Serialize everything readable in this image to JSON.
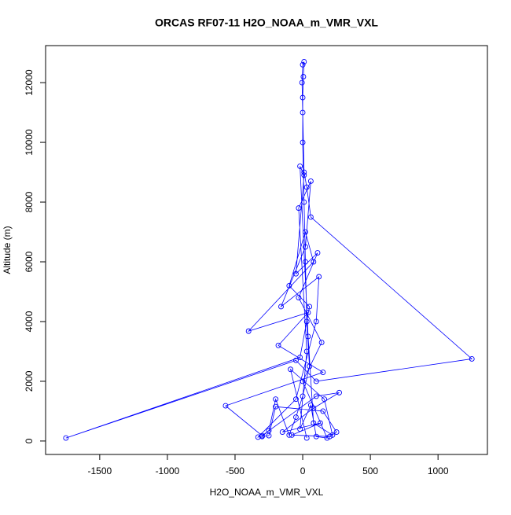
{
  "chart_data": {
    "type": "line",
    "title": "ORCAS RF07-11 H2O_NOAA_m_VMR_VXL",
    "x_label": "H2O_NOAA_m_VMR_VXL",
    "y_label": "Altitude (m)",
    "color": "#0000ff",
    "markers": true,
    "xlim": [
      -1900,
      1365
    ],
    "ylim": [
      -450,
      13240
    ],
    "xticks": [
      -1500,
      -1000,
      -500,
      0,
      500,
      1000
    ],
    "yticks": [
      0,
      2000,
      4000,
      6000,
      8000,
      10000,
      12000
    ],
    "x": [
      -300,
      -250,
      -200,
      -100,
      -50,
      0,
      50,
      30,
      20,
      10,
      0,
      0,
      5,
      10,
      0,
      -5,
      0,
      10,
      30,
      60,
      1250,
      100,
      -50,
      -1750,
      -20,
      50,
      -100,
      20,
      80,
      -400,
      40,
      -180,
      150,
      -570,
      -300,
      100,
      270,
      80,
      -150,
      130,
      -80,
      200,
      250,
      150,
      -200,
      -250,
      -330,
      -50,
      100,
      120,
      -160,
      20,
      60,
      -30,
      30,
      -20,
      60,
      100,
      180,
      0,
      140,
      -30,
      110,
      -50,
      10,
      -20,
      40,
      80,
      220,
      160,
      -90,
      30
    ],
    "values": [
      150,
      350,
      1400,
      200,
      800,
      1500,
      2500,
      4000,
      6000,
      8000,
      10000,
      11500,
      12200,
      12700,
      12600,
      12000,
      11000,
      9000,
      8500,
      7500,
      2750,
      2000,
      2700,
      100,
      2800,
      4500,
      5200,
      7000,
      6000,
      3680,
      4300,
      3200,
      2300,
      1180,
      180,
      1500,
      1620,
      1100,
      300,
      600,
      200,
      150,
      300,
      1000,
      1150,
      180,
      130,
      1400,
      4000,
      5500,
      4500,
      6500,
      8700,
      7800,
      3000,
      400,
      1200,
      150,
      100,
      2000,
      3300,
      4800,
      6300,
      5600,
      8900,
      9200,
      3500,
      600,
      200,
      1400,
      2400,
      100
    ]
  }
}
